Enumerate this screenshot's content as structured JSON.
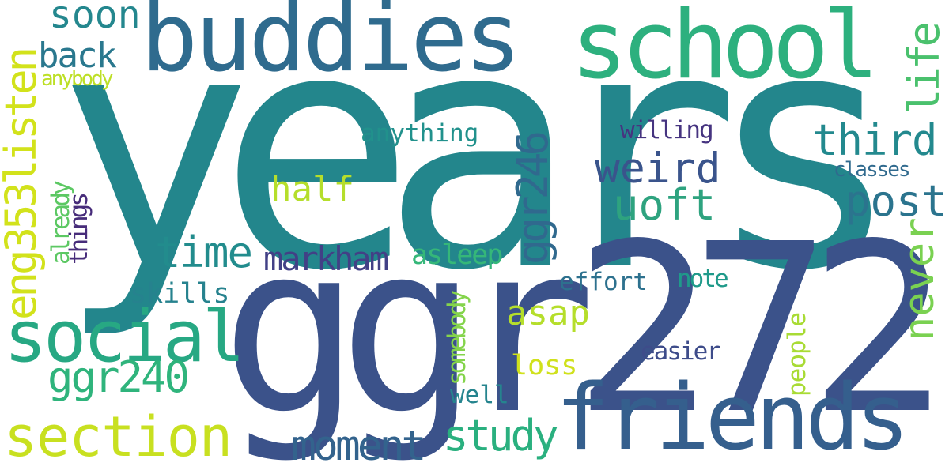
{
  "words": {
    "years": {
      "text": "years",
      "color": "#23868c"
    },
    "ggr272": {
      "text": "ggr272",
      "color": "#3b528a"
    },
    "buddies": {
      "text": "buddies",
      "color": "#2f6b8e"
    },
    "school": {
      "text": "school",
      "color": "#2db07e"
    },
    "friends": {
      "text": "friends",
      "color": "#355f8d"
    },
    "social": {
      "text": "social",
      "color": "#27a883"
    },
    "section": {
      "text": "section",
      "color": "#c8e020"
    },
    "soon": {
      "text": "soon",
      "color": "#24878e"
    },
    "back": {
      "text": "back",
      "color": "#2a788e"
    },
    "anybody": {
      "text": "anybody",
      "color": "#bddf26"
    },
    "eng353listen": {
      "text": "eng353listen",
      "color": "#d2e21b"
    },
    "already": {
      "text": "already",
      "color": "#5cc863"
    },
    "things": {
      "text": "things",
      "color": "#472c7a"
    },
    "life": {
      "text": "life",
      "color": "#4ac16d"
    },
    "never": {
      "text": "never",
      "color": "#7ad151"
    },
    "third": {
      "text": "third",
      "color": "#23898e"
    },
    "weird": {
      "text": "weird",
      "color": "#3a548c"
    },
    "uoft": {
      "text": "uoft",
      "color": "#2ea37f"
    },
    "post": {
      "text": "post",
      "color": "#2b748e"
    },
    "ggr246": {
      "text": "ggr246",
      "color": "#30698e"
    },
    "anything": {
      "text": "anything",
      "color": "#21918c"
    },
    "willing": {
      "text": "willing",
      "color": "#463480"
    },
    "classes": {
      "text": "classes",
      "color": "#306a8e"
    },
    "half": {
      "text": "half",
      "color": "#b5de2b"
    },
    "time": {
      "text": "time",
      "color": "#228c8d"
    },
    "markham": {
      "text": "markham",
      "color": "#424086"
    },
    "asleep": {
      "text": "asleep",
      "color": "#35b779"
    },
    "skills": {
      "text": "skills",
      "color": "#26828e"
    },
    "effort": {
      "text": "effort",
      "color": "#2d718e"
    },
    "note": {
      "text": "note",
      "color": "#1f9a8a"
    },
    "asap": {
      "text": "asap",
      "color": "#b5de2b"
    },
    "ggr240": {
      "text": "ggr240",
      "color": "#2fb47c"
    },
    "people": {
      "text": "people",
      "color": "#a8db34"
    },
    "somebody": {
      "text": "somebody",
      "color": "#84d44b"
    },
    "easier": {
      "text": "easier",
      "color": "#3e4c8a"
    },
    "loss": {
      "text": "loss",
      "color": "#d0e11c"
    },
    "well": {
      "text": "well",
      "color": "#25848e"
    },
    "moment": {
      "text": "moment",
      "color": "#33638d"
    },
    "study": {
      "text": "study",
      "color": "#2ab07f"
    }
  }
}
